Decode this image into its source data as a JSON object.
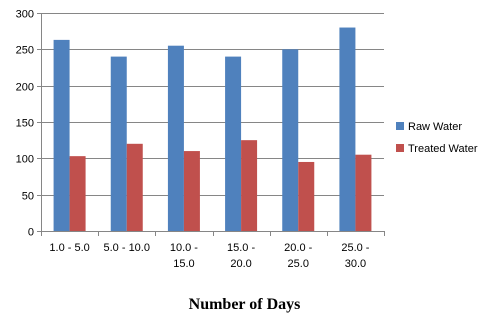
{
  "chart_data": {
    "type": "bar",
    "categories": [
      [
        "1.0 - 5.0"
      ],
      [
        "5.0 - 10.0"
      ],
      [
        "10.0 -",
        "15.0"
      ],
      [
        "15.0 -",
        "20.0"
      ],
      [
        "20.0 -",
        "25.0"
      ],
      [
        "25.0 -",
        "30.0"
      ]
    ],
    "series": [
      {
        "name": "Raw Water",
        "color": "#4F81BD",
        "values": [
          263,
          240,
          255,
          240,
          250,
          280
        ]
      },
      {
        "name": "Treated Water",
        "color": "#C0504D",
        "values": [
          103,
          120,
          110,
          125,
          95,
          105
        ]
      }
    ],
    "title": "",
    "xlabel": "Number of Days",
    "ylabel": "",
    "ylim": [
      0,
      300
    ],
    "yticks": [
      0,
      50,
      100,
      150,
      200,
      250,
      300
    ],
    "grid": true,
    "legend": "right"
  }
}
